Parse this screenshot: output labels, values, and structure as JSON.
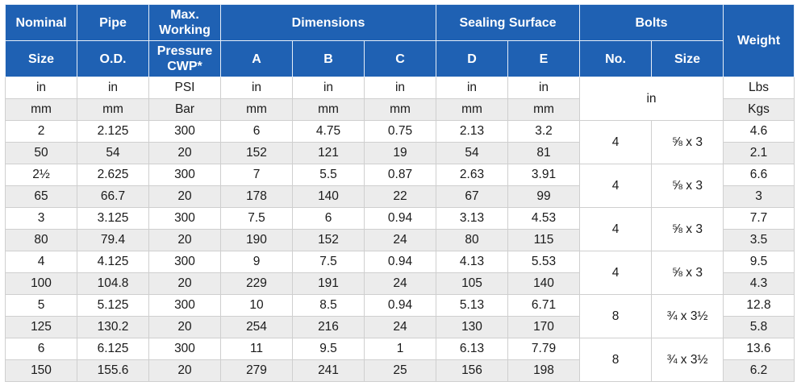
{
  "headers": {
    "nominal": "Nominal",
    "nominal_sub": "Size",
    "pipe": "Pipe",
    "pipe_sub": "O.D.",
    "max_working": "Max. Working",
    "max_working_sub": "Pressure CWP*",
    "dimensions": "Dimensions",
    "dim_a": "A",
    "dim_b": "B",
    "dim_c": "C",
    "sealing_surface": "Sealing Surface",
    "seal_d": "D",
    "seal_e": "E",
    "bolts": "Bolts",
    "bolts_no": "No.",
    "bolts_size": "Size",
    "weight": "Weight"
  },
  "units": {
    "imperial": [
      "in",
      "in",
      "PSI",
      "in",
      "in",
      "in",
      "in",
      "in"
    ],
    "metric": [
      "mm",
      "mm",
      "Bar",
      "mm",
      "mm",
      "mm",
      "mm",
      "mm"
    ],
    "bolts_unit": "in",
    "weight_imperial": "Lbs",
    "weight_metric": "Kgs"
  },
  "rows": [
    {
      "imperial": [
        "2",
        "2.125",
        "300",
        "6",
        "4.75",
        "0.75",
        "2.13",
        "3.2"
      ],
      "metric": [
        "50",
        "54",
        "20",
        "152",
        "121",
        "19",
        "54",
        "81"
      ],
      "bolt_no": "4",
      "bolt_size": "⅝ x 3",
      "weight_lbs": "4.6",
      "weight_kgs": "2.1"
    },
    {
      "imperial": [
        "2½",
        "2.625",
        "300",
        "7",
        "5.5",
        "0.87",
        "2.63",
        "3.91"
      ],
      "metric": [
        "65",
        "66.7",
        "20",
        "178",
        "140",
        "22",
        "67",
        "99"
      ],
      "bolt_no": "4",
      "bolt_size": "⅝ x 3",
      "weight_lbs": "6.6",
      "weight_kgs": "3"
    },
    {
      "imperial": [
        "3",
        "3.125",
        "300",
        "7.5",
        "6",
        "0.94",
        "3.13",
        "4.53"
      ],
      "metric": [
        "80",
        "79.4",
        "20",
        "190",
        "152",
        "24",
        "80",
        "115"
      ],
      "bolt_no": "4",
      "bolt_size": "⅝ x 3",
      "weight_lbs": "7.7",
      "weight_kgs": "3.5"
    },
    {
      "imperial": [
        "4",
        "4.125",
        "300",
        "9",
        "7.5",
        "0.94",
        "4.13",
        "5.53"
      ],
      "metric": [
        "100",
        "104.8",
        "20",
        "229",
        "191",
        "24",
        "105",
        "140"
      ],
      "bolt_no": "4",
      "bolt_size": "⅝ x 3",
      "weight_lbs": "9.5",
      "weight_kgs": "4.3"
    },
    {
      "imperial": [
        "5",
        "5.125",
        "300",
        "10",
        "8.5",
        "0.94",
        "5.13",
        "6.71"
      ],
      "metric": [
        "125",
        "130.2",
        "20",
        "254",
        "216",
        "24",
        "130",
        "170"
      ],
      "bolt_no": "8",
      "bolt_size": "¾ x 3½",
      "weight_lbs": "12.8",
      "weight_kgs": "5.8"
    },
    {
      "imperial": [
        "6",
        "6.125",
        "300",
        "11",
        "9.5",
        "1",
        "6.13",
        "7.79"
      ],
      "metric": [
        "150",
        "155.6",
        "20",
        "279",
        "241",
        "25",
        "156",
        "198"
      ],
      "bolt_no": "8",
      "bolt_size": "¾ x 3½",
      "weight_lbs": "13.6",
      "weight_kgs": "6.2"
    }
  ]
}
